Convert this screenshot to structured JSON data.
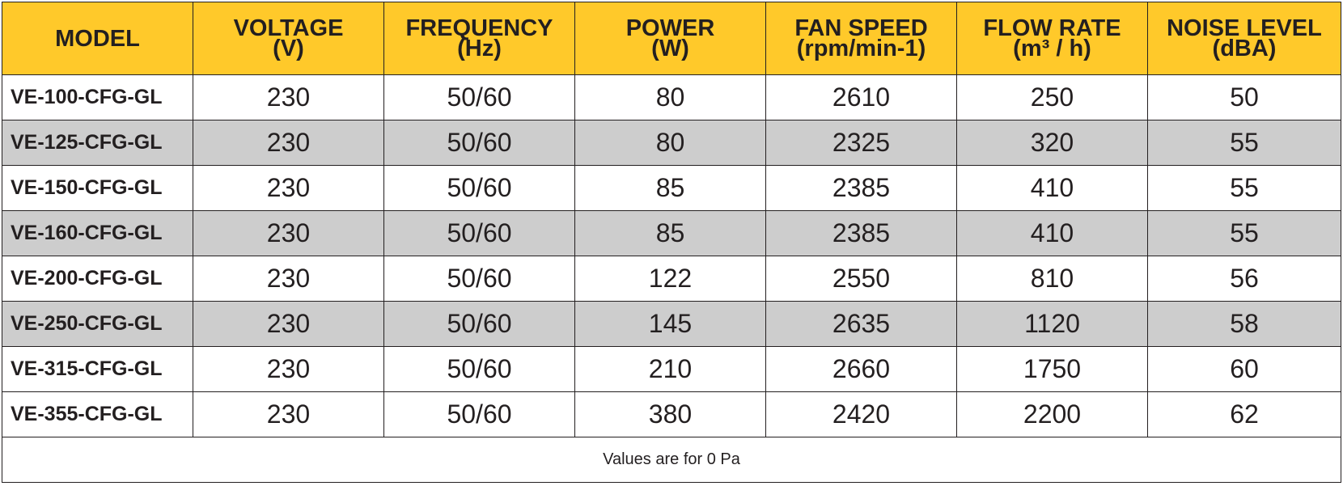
{
  "colors": {
    "header_bg": "#ffc92a",
    "shaded_row_bg": "#cdcdcd",
    "border": "#231f20"
  },
  "table": {
    "headers": [
      {
        "label": "MODEL",
        "unit": ""
      },
      {
        "label": "VOLTAGE",
        "unit": "(V)"
      },
      {
        "label": "FREQUENCY",
        "unit": "(Hz)"
      },
      {
        "label": "POWER",
        "unit": "(W)"
      },
      {
        "label": "FAN SPEED",
        "unit": "(rpm/min-1)"
      },
      {
        "label": "FLOW RATE",
        "unit": "(m³ / h)"
      },
      {
        "label": "NOISE LEVEL",
        "unit": "(dBA)"
      }
    ],
    "rows": [
      [
        "VE-100-CFG-GL",
        "230",
        "50/60",
        "80",
        "2610",
        "250",
        "50"
      ],
      [
        "VE-125-CFG-GL",
        "230",
        "50/60",
        "80",
        "2325",
        "320",
        "55"
      ],
      [
        "VE-150-CFG-GL",
        "230",
        "50/60",
        "85",
        "2385",
        "410",
        "55"
      ],
      [
        "VE-160-CFG-GL",
        "230",
        "50/60",
        "85",
        "2385",
        "410",
        "55"
      ],
      [
        "VE-200-CFG-GL",
        "230",
        "50/60",
        "122",
        "2550",
        "810",
        "56"
      ],
      [
        "VE-250-CFG-GL",
        "230",
        "50/60",
        "145",
        "2635",
        "1120",
        "58"
      ],
      [
        "VE-315-CFG-GL",
        "230",
        "50/60",
        "210",
        "2660",
        "1750",
        "60"
      ],
      [
        "VE-355-CFG-GL",
        "230",
        "50/60",
        "380",
        "2420",
        "2200",
        "62"
      ]
    ],
    "footnote": "Values are for 0 Pa"
  }
}
